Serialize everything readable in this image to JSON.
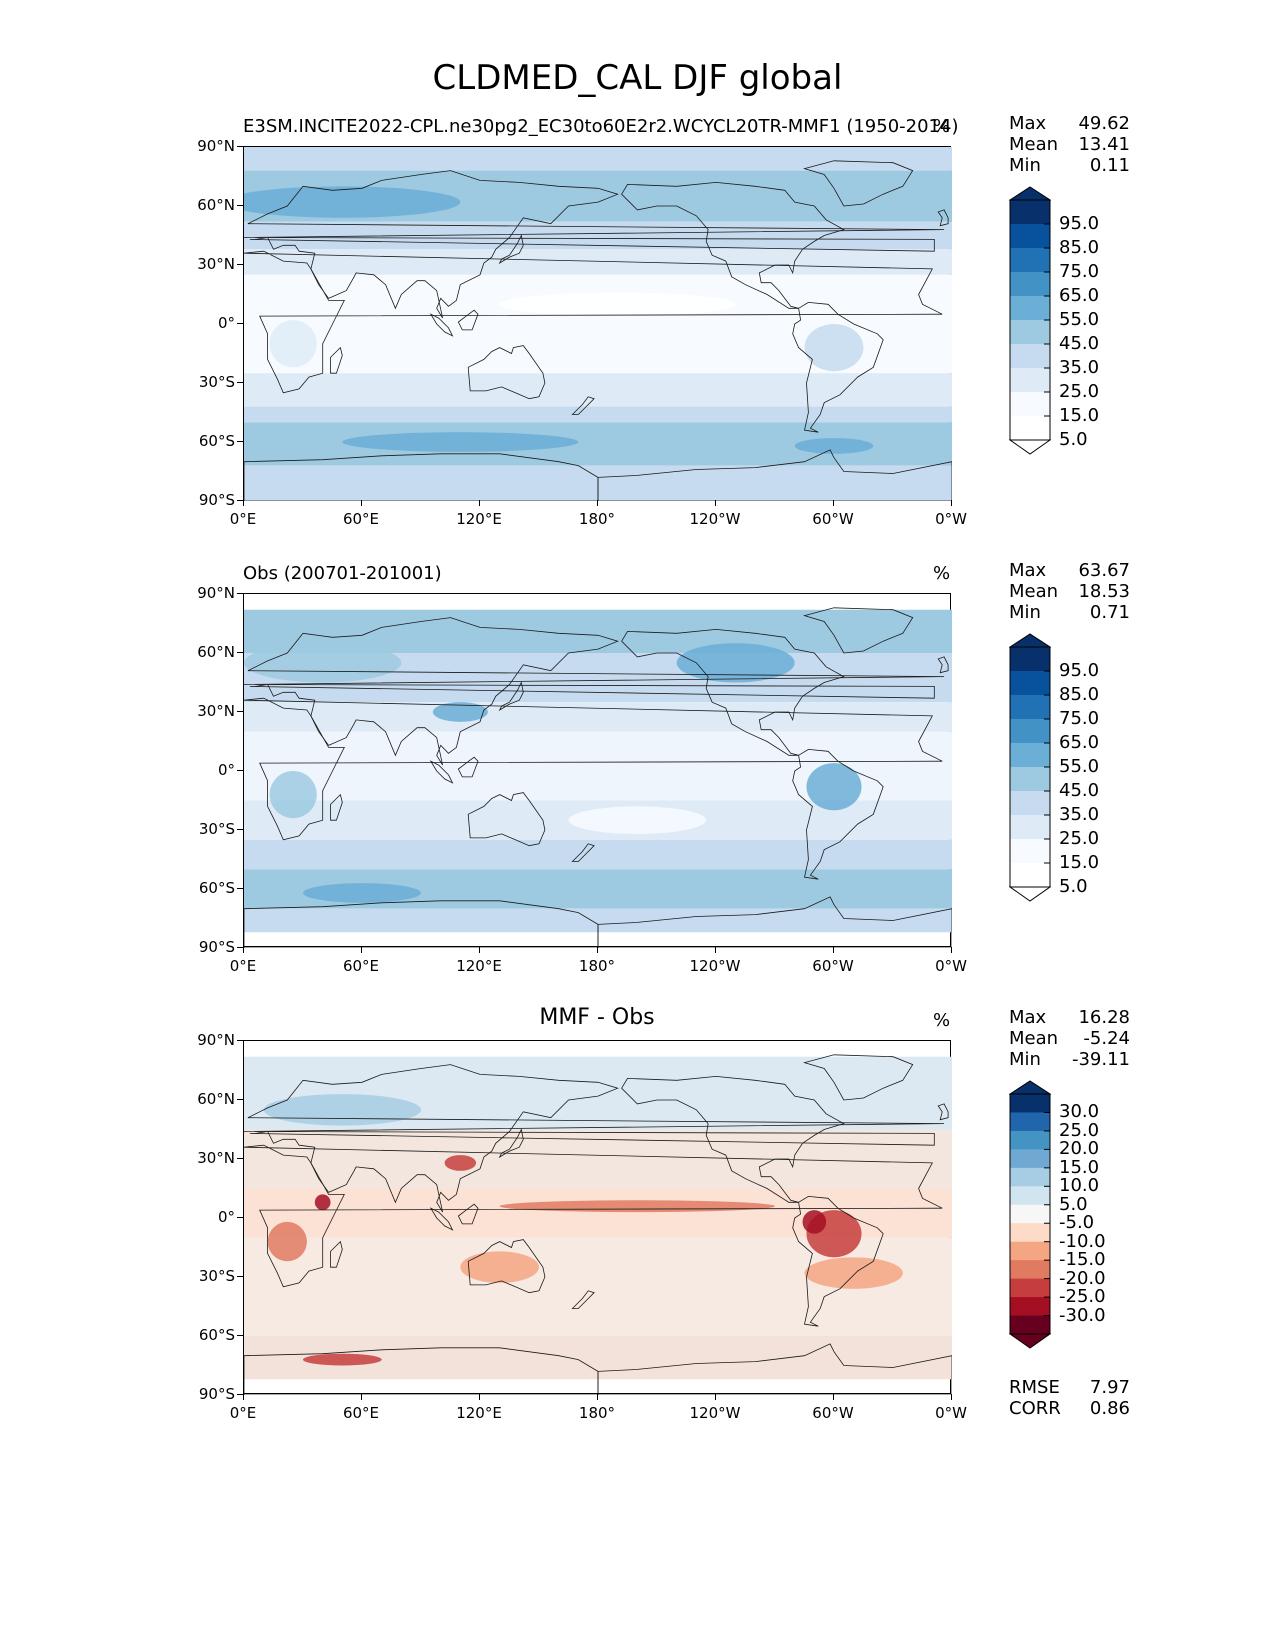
{
  "figure_title": "CLDMED_CAL DJF global",
  "map_axes": {
    "lat_ticks": [
      "90°N",
      "60°N",
      "30°N",
      "0°",
      "30°S",
      "60°S",
      "90°S"
    ],
    "lon_ticks": [
      "0°E",
      "60°E",
      "120°E",
      "180°",
      "120°W",
      "60°W",
      "0°W"
    ]
  },
  "panels": [
    {
      "id": "model",
      "title": "E3SM.INCITE2022-CPL.ne30pg2_EC30to60E2r2.WCYCL20TR-MMF1 (1950-2014)",
      "units": "%",
      "stats": [
        {
          "name": "Max",
          "value": "49.62"
        },
        {
          "name": "Mean",
          "value": "13.41"
        },
        {
          "name": "Min",
          "value": "0.11"
        }
      ],
      "colorbar": {
        "labels": [
          "95.0",
          "85.0",
          "75.0",
          "65.0",
          "55.0",
          "45.0",
          "35.0",
          "25.0",
          "15.0",
          "5.0"
        ],
        "colors": [
          "#08306b",
          "#08519c",
          "#2171b5",
          "#4292c6",
          "#6baed6",
          "#9ecae1",
          "#c6dbef",
          "#deebf7",
          "#f7fbff",
          "#ffffff"
        ]
      }
    },
    {
      "id": "obs",
      "title": "Obs (200701-201001)",
      "units": "%",
      "stats": [
        {
          "name": "Max",
          "value": "63.67"
        },
        {
          "name": "Mean",
          "value": "18.53"
        },
        {
          "name": "Min",
          "value": "0.71"
        }
      ],
      "colorbar": {
        "labels": [
          "95.0",
          "85.0",
          "75.0",
          "65.0",
          "55.0",
          "45.0",
          "35.0",
          "25.0",
          "15.0",
          "5.0"
        ],
        "colors": [
          "#08306b",
          "#08519c",
          "#2171b5",
          "#4292c6",
          "#6baed6",
          "#9ecae1",
          "#c6dbef",
          "#deebf7",
          "#f7fbff",
          "#ffffff"
        ]
      }
    },
    {
      "id": "diff",
      "title": "MMF - Obs",
      "units": "%",
      "stats": [
        {
          "name": "Max",
          "value": "16.28"
        },
        {
          "name": "Mean",
          "value": "-5.24"
        },
        {
          "name": "Min",
          "value": "-39.11"
        }
      ],
      "colorbar": {
        "labels": [
          "30.0",
          "25.0",
          "20.0",
          "15.0",
          "10.0",
          "5.0",
          "-5.0",
          "-10.0",
          "-15.0",
          "-20.0",
          "-25.0",
          "-30.0"
        ],
        "colors": [
          "#08306b",
          "#2166ac",
          "#4393c3",
          "#6fa8d2",
          "#a6cde3",
          "#d1e5f0",
          "#f7f7f7",
          "#fddbc7",
          "#f4a582",
          "#e07b61",
          "#c53e3d",
          "#a50f24",
          "#67001f"
        ]
      },
      "metrics": [
        {
          "name": "RMSE",
          "value": "7.97"
        },
        {
          "name": "CORR",
          "value": "0.86"
        }
      ]
    }
  ]
}
